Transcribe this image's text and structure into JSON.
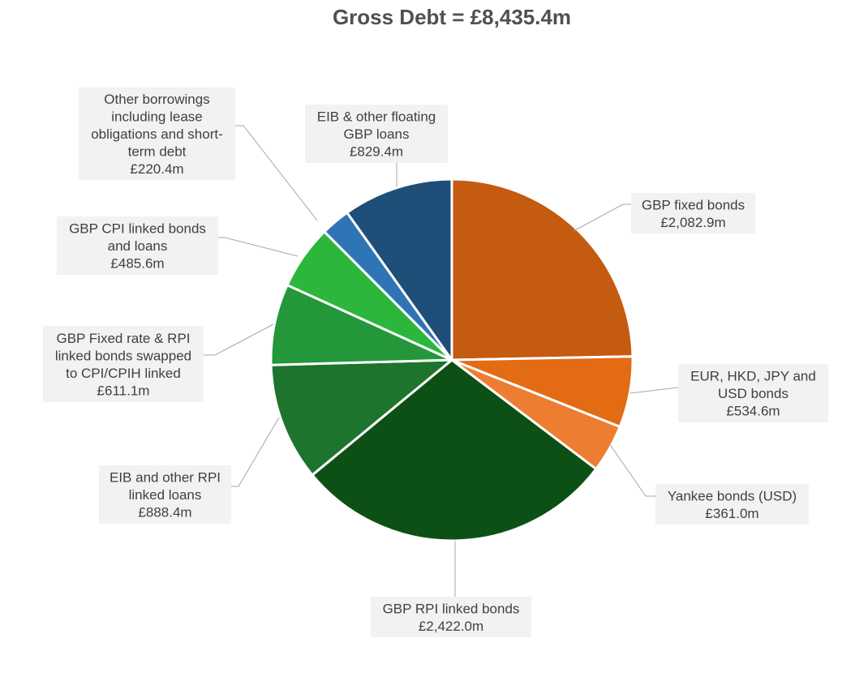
{
  "chart_data": {
    "type": "pie",
    "title": "Gross Debt = £8,435.4m",
    "unit": "£m",
    "slices": [
      {
        "label_lines": [
          "GBP fixed bonds"
        ],
        "value_text": "£2,082.9m",
        "value": 2082.9,
        "color": "#c55a11"
      },
      {
        "label_lines": [
          "EUR, HKD, JPY and",
          "USD bonds"
        ],
        "value_text": "£534.6m",
        "value": 534.6,
        "color": "#e26b14"
      },
      {
        "label_lines": [
          "Yankee bonds (USD)"
        ],
        "value_text": "£361.0m",
        "value": 361.0,
        "color": "#ed7d31"
      },
      {
        "label_lines": [
          "GBP RPI linked bonds"
        ],
        "value_text": "£2,422.0m",
        "value": 2422.0,
        "color": "#0d5015"
      },
      {
        "label_lines": [
          "EIB and other RPI",
          "linked loans"
        ],
        "value_text": "£888.4m",
        "value": 888.4,
        "color": "#1d742d"
      },
      {
        "label_lines": [
          "GBP Fixed rate & RPI",
          "linked bonds swapped",
          "to CPI/CPIH linked"
        ],
        "value_text": "£611.1m",
        "value": 611.1,
        "color": "#23973a"
      },
      {
        "label_lines": [
          "GBP CPI linked bonds",
          "and loans"
        ],
        "value_text": "£485.6m",
        "value": 485.6,
        "color": "#2db63c"
      },
      {
        "label_lines": [
          "Other borrowings",
          "including lease",
          "obligations and short-",
          "term debt"
        ],
        "value_text": "£220.4m",
        "value": 220.4,
        "color": "#2e75b6"
      },
      {
        "label_lines": [
          "EIB & other floating",
          "GBP loans"
        ],
        "value_text": "£829.4m",
        "value": 829.4,
        "color": "#1f4e79"
      }
    ]
  }
}
